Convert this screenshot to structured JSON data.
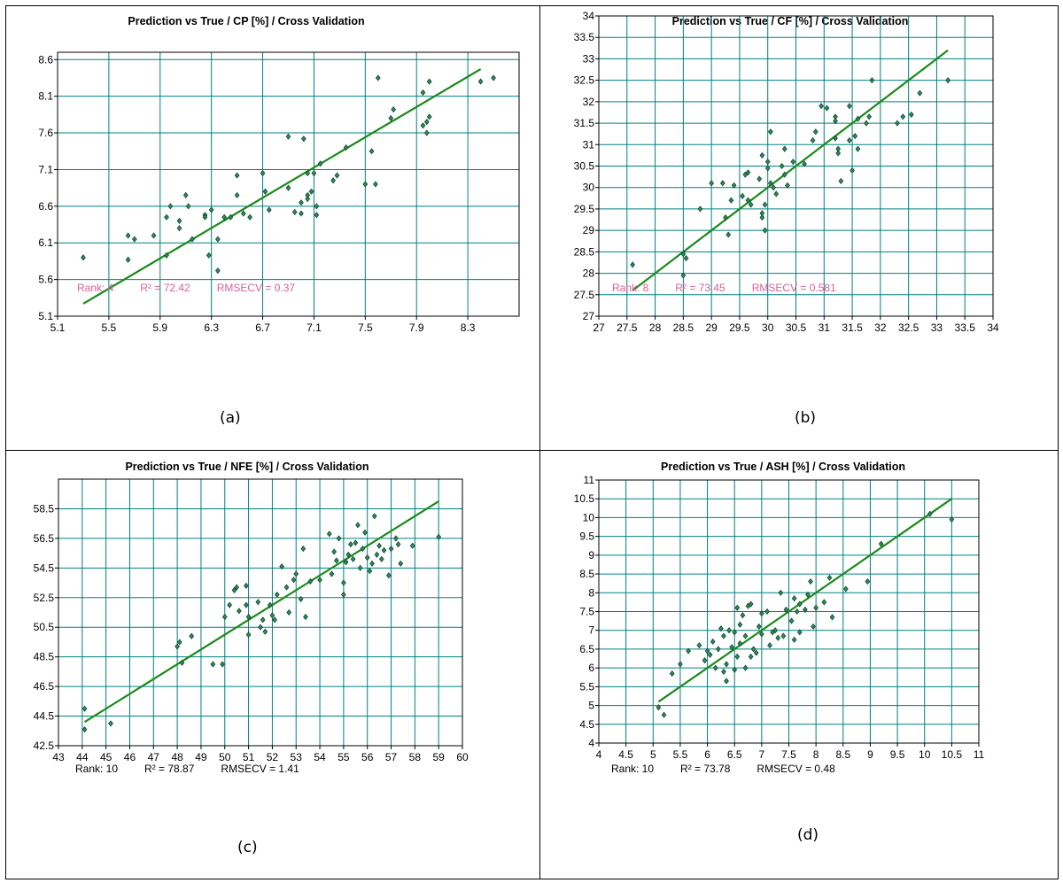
{
  "colors": {
    "grid": "#008080",
    "frame": "#000000",
    "line": "#1a8a1a",
    "point_fill": "#2e8b57",
    "point_stroke": "#0a3d2a",
    "stats_pink": "#d9609c",
    "stats_dark": "#000000"
  },
  "chart_data": [
    {
      "type": "scatter",
      "title": "Prediction vs True  /  CP [%]  /  Cross Validation",
      "caption": "(a)",
      "xlim": [
        5.1,
        8.7
      ],
      "ylim": [
        5.1,
        8.7
      ],
      "xticks": [
        "5.1",
        "5.5",
        "5.9",
        "6.3",
        "6.7",
        "7.1",
        "7.5",
        "7.9",
        "8.3"
      ],
      "yticks": [
        "5.1",
        "5.6",
        "6.1",
        "6.6",
        "7.1",
        "7.6",
        "8.1",
        "8.6"
      ],
      "xtick_values": [
        5.1,
        5.5,
        5.9,
        6.3,
        6.7,
        7.1,
        7.5,
        7.9,
        8.3
      ],
      "ytick_values": [
        5.1,
        5.6,
        6.1,
        6.6,
        7.1,
        7.6,
        8.1,
        8.6
      ],
      "fit_line": [
        [
          5.3,
          5.27
        ],
        [
          8.4,
          8.47
        ]
      ],
      "stats": {
        "rank": "Rank: 4",
        "r2": "R² = 72.42",
        "rmsecv": "RMSECV = 0.37",
        "color": "pink"
      },
      "points": [
        [
          5.3,
          5.9
        ],
        [
          5.65,
          6.2
        ],
        [
          5.65,
          5.87
        ],
        [
          5.7,
          6.15
        ],
        [
          5.85,
          6.2
        ],
        [
          5.95,
          6.45
        ],
        [
          5.95,
          5.93
        ],
        [
          5.98,
          6.6
        ],
        [
          6.05,
          6.4
        ],
        [
          6.05,
          6.3
        ],
        [
          6.1,
          6.75
        ],
        [
          6.12,
          6.6
        ],
        [
          6.15,
          6.15
        ],
        [
          6.25,
          6.48
        ],
        [
          6.25,
          6.45
        ],
        [
          6.28,
          5.93
        ],
        [
          6.3,
          6.55
        ],
        [
          6.35,
          6.15
        ],
        [
          6.4,
          6.45
        ],
        [
          6.35,
          5.72
        ],
        [
          6.45,
          6.45
        ],
        [
          6.5,
          6.75
        ],
        [
          6.5,
          7.02
        ],
        [
          6.55,
          6.5
        ],
        [
          6.6,
          6.45
        ],
        [
          6.7,
          7.05
        ],
        [
          6.72,
          6.8
        ],
        [
          6.75,
          6.55
        ],
        [
          6.9,
          6.85
        ],
        [
          6.95,
          6.52
        ],
        [
          6.9,
          7.55
        ],
        [
          7.0,
          6.65
        ],
        [
          7.0,
          6.5
        ],
        [
          7.02,
          7.52
        ],
        [
          7.05,
          6.75
        ],
        [
          7.05,
          6.7
        ],
        [
          7.08,
          6.8
        ],
        [
          7.05,
          7.05
        ],
        [
          7.1,
          7.05
        ],
        [
          7.12,
          6.6
        ],
        [
          7.12,
          6.48
        ],
        [
          7.15,
          7.18
        ],
        [
          7.25,
          6.95
        ],
        [
          7.28,
          7.02
        ],
        [
          7.35,
          7.4
        ],
        [
          7.5,
          6.9
        ],
        [
          7.55,
          7.35
        ],
        [
          7.58,
          6.9
        ],
        [
          7.6,
          8.35
        ],
        [
          7.7,
          7.8
        ],
        [
          7.72,
          7.92
        ],
        [
          7.95,
          7.7
        ],
        [
          7.95,
          8.15
        ],
        [
          7.98,
          7.6
        ],
        [
          7.98,
          7.75
        ],
        [
          8.0,
          8.3
        ],
        [
          8.0,
          7.82
        ],
        [
          8.4,
          8.3
        ],
        [
          8.5,
          8.35
        ]
      ]
    },
    {
      "type": "scatter",
      "title": "Prediction vs True  /  CF [%]  /  Cross Validation",
      "caption": "(b)",
      "xlim": [
        27,
        34
      ],
      "ylim": [
        27,
        34
      ],
      "xticks": [
        "27",
        "27.5",
        "28",
        "28.5",
        "29",
        "29.5",
        "30",
        "30.5",
        "31",
        "31.5",
        "32",
        "32.5",
        "33",
        "33.5",
        "34"
      ],
      "yticks": [
        "27",
        "27.5",
        "28",
        "28.5",
        "29",
        "29.5",
        "30",
        "30.5",
        "31",
        "31.5",
        "32",
        "32.5",
        "33",
        "33.5",
        "34"
      ],
      "xtick_values": [
        27,
        27.5,
        28,
        28.5,
        29,
        29.5,
        30,
        30.5,
        31,
        31.5,
        32,
        32.5,
        33,
        33.5,
        34
      ],
      "ytick_values": [
        27,
        27.5,
        28,
        28.5,
        29,
        29.5,
        30,
        30.5,
        31,
        31.5,
        32,
        32.5,
        33,
        33.5,
        34
      ],
      "fit_line": [
        [
          27.6,
          27.6
        ],
        [
          33.2,
          33.2
        ]
      ],
      "stats": {
        "rank": "Rank: 8",
        "r2": "R² = 73.45",
        "rmsecv": "RMSECV = 0.581",
        "color": "pink"
      },
      "points": [
        [
          27.6,
          28.2
        ],
        [
          28.5,
          28.45
        ],
        [
          28.5,
          27.95
        ],
        [
          28.55,
          28.35
        ],
        [
          28.8,
          29.5
        ],
        [
          29.0,
          30.1
        ],
        [
          29.2,
          30.1
        ],
        [
          29.25,
          29.3
        ],
        [
          29.3,
          28.9
        ],
        [
          29.35,
          29.7
        ],
        [
          29.4,
          30.05
        ],
        [
          29.55,
          29.8
        ],
        [
          29.6,
          30.3
        ],
        [
          29.65,
          29.7
        ],
        [
          29.65,
          30.35
        ],
        [
          29.7,
          29.6
        ],
        [
          29.85,
          30.2
        ],
        [
          29.9,
          30.75
        ],
        [
          29.9,
          29.3
        ],
        [
          29.9,
          29.4
        ],
        [
          29.95,
          29.6
        ],
        [
          29.95,
          29.0
        ],
        [
          30.0,
          30.6
        ],
        [
          30.0,
          30.45
        ],
        [
          30.05,
          30.1
        ],
        [
          30.05,
          31.3
        ],
        [
          30.1,
          30.0
        ],
        [
          30.15,
          29.85
        ],
        [
          30.25,
          30.5
        ],
        [
          30.3,
          30.3
        ],
        [
          30.3,
          30.9
        ],
        [
          30.35,
          30.05
        ],
        [
          30.45,
          30.6
        ],
        [
          30.65,
          30.55
        ],
        [
          30.8,
          31.1
        ],
        [
          30.85,
          31.3
        ],
        [
          30.95,
          31.9
        ],
        [
          31.05,
          31.85
        ],
        [
          31.2,
          31.65
        ],
        [
          31.2,
          31.55
        ],
        [
          31.2,
          31.15
        ],
        [
          31.25,
          30.9
        ],
        [
          31.25,
          30.8
        ],
        [
          31.3,
          30.15
        ],
        [
          31.45,
          31.9
        ],
        [
          31.45,
          31.1
        ],
        [
          31.5,
          30.4
        ],
        [
          31.55,
          31.2
        ],
        [
          31.6,
          31.6
        ],
        [
          31.6,
          30.9
        ],
        [
          31.75,
          31.5
        ],
        [
          31.8,
          31.65
        ],
        [
          31.85,
          32.5
        ],
        [
          32.3,
          31.5
        ],
        [
          32.4,
          31.65
        ],
        [
          32.55,
          31.7
        ],
        [
          32.7,
          32.2
        ],
        [
          33.2,
          32.5
        ]
      ]
    },
    {
      "type": "scatter",
      "title": "Prediction vs True  /  NFE [%]  /  Cross Validation",
      "caption": "(c)",
      "xlim": [
        43,
        60
      ],
      "ylim": [
        42.5,
        60.5
      ],
      "xticks": [
        "43",
        "44",
        "45",
        "46",
        "47",
        "48",
        "49",
        "50",
        "51",
        "52",
        "53",
        "54",
        "55",
        "56",
        "57",
        "58",
        "59",
        "60"
      ],
      "yticks": [
        "42.5",
        "44.5",
        "46.5",
        "48.5",
        "50.5",
        "52.5",
        "54.5",
        "56.5",
        "58.5"
      ],
      "xtick_values": [
        43,
        44,
        45,
        46,
        47,
        48,
        49,
        50,
        51,
        52,
        53,
        54,
        55,
        56,
        57,
        58,
        59,
        60
      ],
      "ytick_values": [
        42.5,
        44.5,
        46.5,
        48.5,
        50.5,
        52.5,
        54.5,
        56.5,
        58.5
      ],
      "fit_line": [
        [
          44.1,
          44.1
        ],
        [
          59.0,
          59.0
        ]
      ],
      "stats": {
        "rank": "Rank: 10",
        "r2": "R² = 78.87",
        "rmsecv": "RMSECV = 1.41",
        "color": "dark"
      },
      "points": [
        [
          44.1,
          45.0
        ],
        [
          44.1,
          43.6
        ],
        [
          45.2,
          44.0
        ],
        [
          48.0,
          49.2
        ],
        [
          48.1,
          49.5
        ],
        [
          48.2,
          48.1
        ],
        [
          48.6,
          49.9
        ],
        [
          49.5,
          48.0
        ],
        [
          49.9,
          48.0
        ],
        [
          50.0,
          51.2
        ],
        [
          50.2,
          52.0
        ],
        [
          50.4,
          53.0
        ],
        [
          50.5,
          53.2
        ],
        [
          50.6,
          51.6
        ],
        [
          50.9,
          53.3
        ],
        [
          50.9,
          52.0
        ],
        [
          51.0,
          51.2
        ],
        [
          51.0,
          50.0
        ],
        [
          51.4,
          52.2
        ],
        [
          51.5,
          50.5
        ],
        [
          51.6,
          51.0
        ],
        [
          51.7,
          50.2
        ],
        [
          51.9,
          52.0
        ],
        [
          52.0,
          51.3
        ],
        [
          52.1,
          51.0
        ],
        [
          52.2,
          52.7
        ],
        [
          52.4,
          54.6
        ],
        [
          52.6,
          53.2
        ],
        [
          52.7,
          51.5
        ],
        [
          52.9,
          53.7
        ],
        [
          53.0,
          54.1
        ],
        [
          53.2,
          52.4
        ],
        [
          53.3,
          55.8
        ],
        [
          53.4,
          51.2
        ],
        [
          53.6,
          53.6
        ],
        [
          54.0,
          53.7
        ],
        [
          54.4,
          56.8
        ],
        [
          54.5,
          54.1
        ],
        [
          54.6,
          55.6
        ],
        [
          54.7,
          55.0
        ],
        [
          54.8,
          56.5
        ],
        [
          55.0,
          52.7
        ],
        [
          55.0,
          53.5
        ],
        [
          55.1,
          54.9
        ],
        [
          55.2,
          55.4
        ],
        [
          55.3,
          56.1
        ],
        [
          55.4,
          55.1
        ],
        [
          55.5,
          56.2
        ],
        [
          55.6,
          57.4
        ],
        [
          55.7,
          54.5
        ],
        [
          55.8,
          55.8
        ],
        [
          55.9,
          56.9
        ],
        [
          56.0,
          55.2
        ],
        [
          56.1,
          54.3
        ],
        [
          56.2,
          54.8
        ],
        [
          56.3,
          58.0
        ],
        [
          56.4,
          55.4
        ],
        [
          56.5,
          56.0
        ],
        [
          56.6,
          55.1
        ],
        [
          56.7,
          55.7
        ],
        [
          56.9,
          54.0
        ],
        [
          57.0,
          55.8
        ],
        [
          57.2,
          56.5
        ],
        [
          57.3,
          56.1
        ],
        [
          57.4,
          54.8
        ],
        [
          57.9,
          56.0
        ],
        [
          59.0,
          56.6
        ]
      ]
    },
    {
      "type": "scatter",
      "title": "Prediction vs True  /  ASH [%]  /  Cross Validation",
      "caption": "(d)",
      "xlim": [
        4,
        11
      ],
      "ylim": [
        4,
        11
      ],
      "xticks": [
        "4",
        "4.5",
        "5",
        "5.5",
        "6",
        "6.5",
        "7",
        "7.5",
        "8",
        "8.5",
        "9",
        "9.5",
        "10",
        "10.5",
        "11"
      ],
      "yticks": [
        "4",
        "4.5",
        "5",
        "5.5",
        "6",
        "6.5",
        "7",
        "7.5",
        "8",
        "8.5",
        "9",
        "9.5",
        "10",
        "10.5",
        "11"
      ],
      "xtick_values": [
        4,
        4.5,
        5,
        5.5,
        6,
        6.5,
        7,
        7.5,
        8,
        8.5,
        9,
        9.5,
        10,
        10.5,
        11
      ],
      "ytick_values": [
        4,
        4.5,
        5,
        5.5,
        6,
        6.5,
        7,
        7.5,
        8,
        8.5,
        9,
        9.5,
        10,
        10.5,
        11
      ],
      "fit_line": [
        [
          5.1,
          5.1
        ],
        [
          10.5,
          10.5
        ]
      ],
      "stats": {
        "rank": "Rank: 10",
        "r2": "R² = 73.78",
        "rmsecv": "RMSECV = 0.48",
        "color": "dark"
      },
      "points": [
        [
          5.1,
          4.95
        ],
        [
          5.2,
          4.75
        ],
        [
          5.35,
          5.85
        ],
        [
          5.5,
          6.1
        ],
        [
          5.65,
          6.45
        ],
        [
          5.85,
          6.6
        ],
        [
          5.95,
          6.2
        ],
        [
          6.0,
          6.45
        ],
        [
          6.05,
          6.35
        ],
        [
          6.1,
          6.7
        ],
        [
          6.15,
          6.0
        ],
        [
          6.2,
          6.5
        ],
        [
          6.25,
          7.05
        ],
        [
          6.3,
          6.85
        ],
        [
          6.3,
          5.9
        ],
        [
          6.35,
          6.1
        ],
        [
          6.35,
          5.65
        ],
        [
          6.4,
          7.0
        ],
        [
          6.45,
          6.55
        ],
        [
          6.5,
          6.95
        ],
        [
          6.5,
          5.95
        ],
        [
          6.55,
          6.3
        ],
        [
          6.55,
          7.6
        ],
        [
          6.6,
          7.15
        ],
        [
          6.6,
          6.65
        ],
        [
          6.65,
          7.4
        ],
        [
          6.7,
          6.0
        ],
        [
          6.7,
          6.85
        ],
        [
          6.75,
          7.65
        ],
        [
          6.8,
          6.3
        ],
        [
          6.8,
          7.7
        ],
        [
          6.85,
          6.5
        ],
        [
          6.9,
          6.4
        ],
        [
          6.95,
          7.1
        ],
        [
          7.0,
          7.45
        ],
        [
          7.0,
          6.9
        ],
        [
          7.1,
          7.5
        ],
        [
          7.15,
          6.6
        ],
        [
          7.2,
          6.95
        ],
        [
          7.25,
          7.0
        ],
        [
          7.3,
          6.8
        ],
        [
          7.35,
          8.0
        ],
        [
          7.4,
          6.85
        ],
        [
          7.45,
          7.55
        ],
        [
          7.55,
          7.25
        ],
        [
          7.6,
          6.75
        ],
        [
          7.6,
          7.85
        ],
        [
          7.65,
          7.5
        ],
        [
          7.7,
          7.7
        ],
        [
          7.7,
          6.95
        ],
        [
          7.8,
          7.55
        ],
        [
          7.85,
          7.95
        ],
        [
          7.9,
          8.3
        ],
        [
          7.95,
          7.1
        ],
        [
          8.0,
          7.6
        ],
        [
          8.15,
          7.75
        ],
        [
          8.25,
          8.4
        ],
        [
          8.3,
          7.35
        ],
        [
          8.55,
          8.1
        ],
        [
          8.95,
          8.3
        ],
        [
          9.2,
          9.3
        ],
        [
          10.1,
          10.1
        ],
        [
          10.5,
          9.95
        ]
      ]
    }
  ]
}
